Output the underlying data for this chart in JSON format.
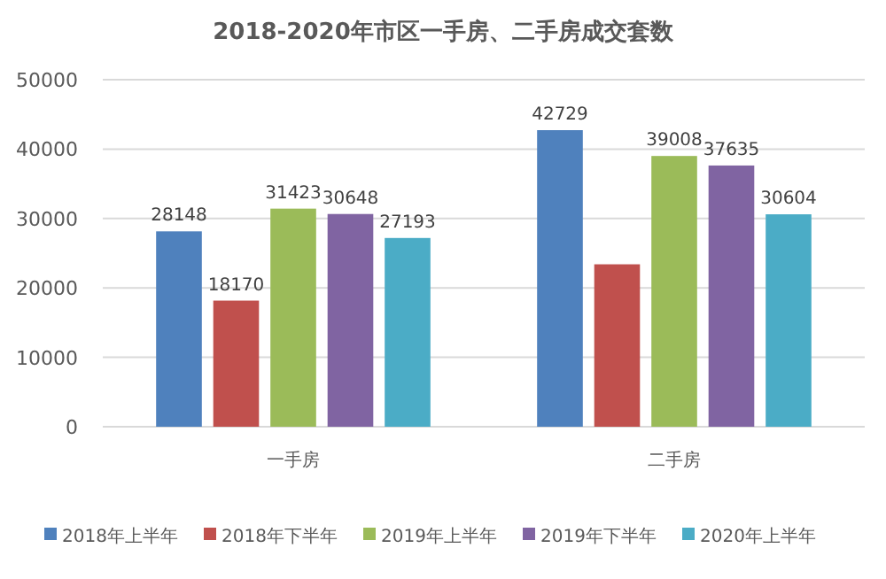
{
  "chart_data": {
    "type": "bar",
    "title": "2018-2020年市区一手房、二手房成交套数",
    "categories": [
      "一手房",
      "二手房"
    ],
    "series": [
      {
        "name": "2018年上半年",
        "color": "#4f81bd",
        "values": [
          28148,
          42729
        ],
        "value_labels": [
          "28148",
          "42729"
        ]
      },
      {
        "name": "2018年下半年",
        "color": "#c0504d",
        "values": [
          18170,
          23400
        ],
        "value_labels": [
          "18170",
          null
        ]
      },
      {
        "name": "2019年上半年",
        "color": "#9bbb59",
        "values": [
          31423,
          39008
        ],
        "value_labels": [
          "31423",
          "39008"
        ]
      },
      {
        "name": "2019年下半年",
        "color": "#8064a2",
        "values": [
          30648,
          37635
        ],
        "value_labels": [
          "30648",
          "37635"
        ]
      },
      {
        "name": "2020年上半年",
        "color": "#4bacc6",
        "values": [
          27193,
          30604
        ],
        "value_labels": [
          "27193",
          "30604"
        ]
      }
    ],
    "ylim": [
      0,
      50000
    ],
    "yticks": [
      0,
      10000,
      20000,
      30000,
      40000,
      50000
    ],
    "grid": "y",
    "legend": "bottom"
  }
}
